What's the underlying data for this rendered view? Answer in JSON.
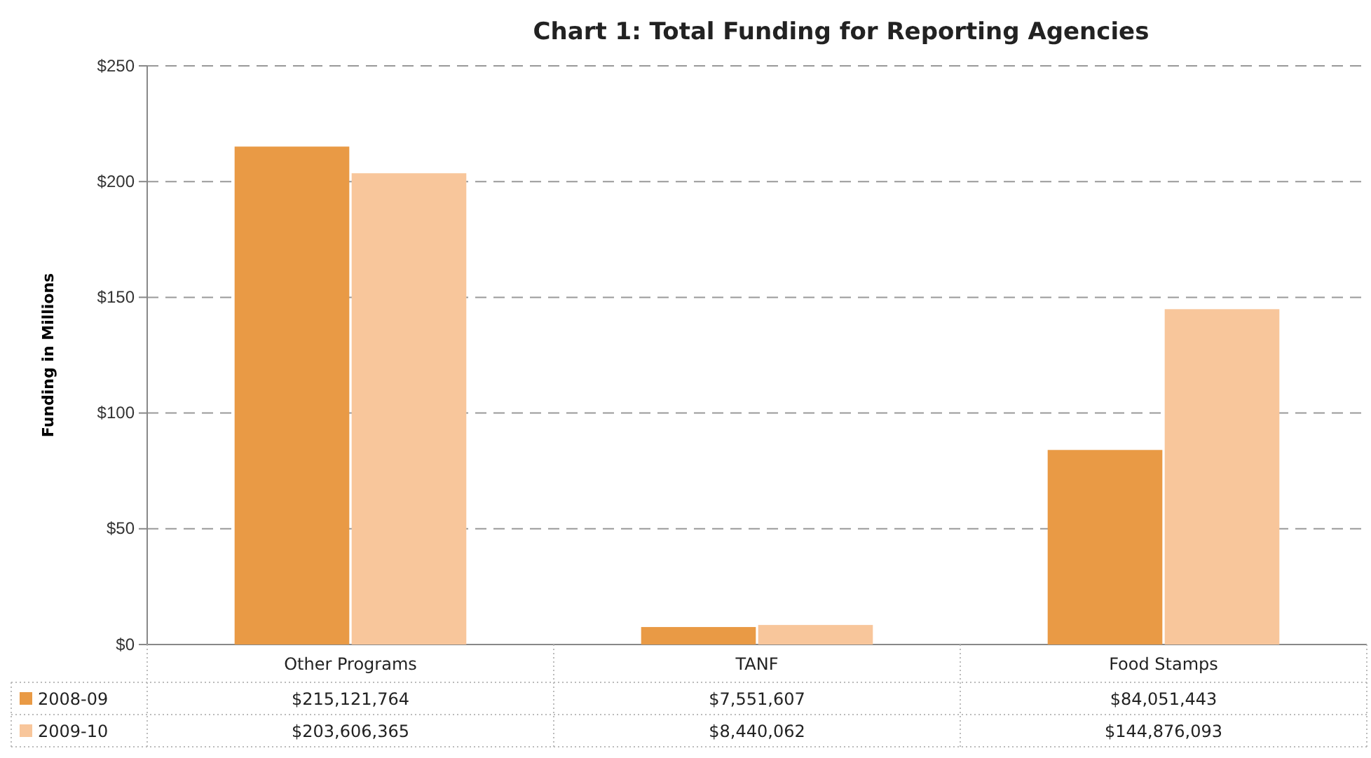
{
  "chart_data": {
    "type": "bar",
    "title": "Chart 1: Total Funding for Reporting Agencies",
    "ylabel": "Funding in Millions",
    "categories": [
      "Other Programs",
      "TANF",
      "Food Stamps"
    ],
    "series": [
      {
        "name": "2008-09",
        "color": "#e99a45",
        "values": [
          215.121764,
          7.551607,
          84.051443
        ]
      },
      {
        "name": "2009-10",
        "color": "#f8c69b",
        "values": [
          203.606365,
          8.440062,
          144.876093
        ]
      }
    ],
    "annotations": [
      "$215,121,764",
      "$7,551,607",
      "$84,051,443",
      "$203,606,365",
      "$8,440,062",
      "$144,876,093"
    ],
    "ylim": [
      0,
      250
    ],
    "yticks": [
      {
        "value": 0,
        "label": "$0"
      },
      {
        "value": 50,
        "label": "$50"
      },
      {
        "value": 100,
        "label": "$100"
      },
      {
        "value": 150,
        "label": "$150"
      },
      {
        "value": 200,
        "label": "$200"
      },
      {
        "value": 250,
        "label": "$250"
      }
    ],
    "grid": "y",
    "legend": "bottom"
  }
}
